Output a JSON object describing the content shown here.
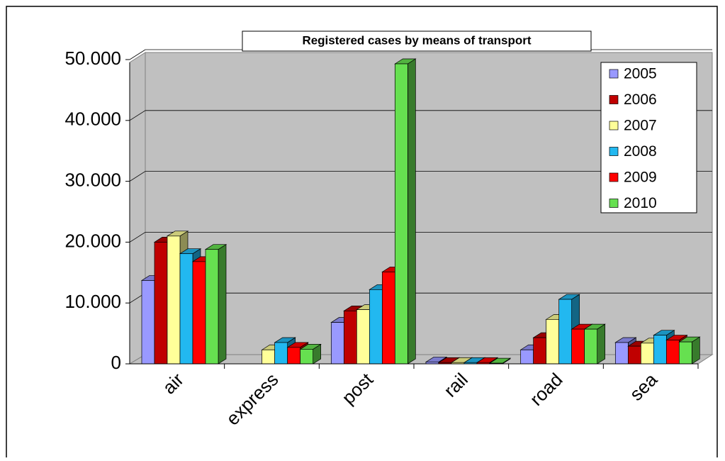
{
  "chart_data": {
    "type": "bar3d",
    "title": "Registered cases by means of transport",
    "categories": [
      "air",
      "express",
      "post",
      "rail",
      "road",
      "sea"
    ],
    "series": [
      {
        "name": "2005",
        "color": "#9999ff",
        "values": [
          13700,
          null,
          6800,
          300,
          2300,
          3500
        ]
      },
      {
        "name": "2006",
        "color": "#c00000",
        "values": [
          20000,
          null,
          8700,
          200,
          4300,
          2900
        ]
      },
      {
        "name": "2007",
        "color": "#ffff99",
        "values": [
          21000,
          2300,
          8900,
          200,
          7300,
          3400
        ]
      },
      {
        "name": "2008",
        "color": "#22b8f0",
        "values": [
          18100,
          3500,
          12200,
          200,
          10600,
          4700
        ]
      },
      {
        "name": "2009",
        "color": "#ff0000",
        "values": [
          16800,
          2700,
          15100,
          200,
          5700,
          3900
        ]
      },
      {
        "name": "2010",
        "color": "#66e050",
        "values": [
          18800,
          2400,
          49300,
          100,
          5700,
          3600
        ]
      }
    ],
    "ylim": [
      0,
      50000
    ],
    "yticks": [
      0,
      {
        "value": 10000,
        "label": "10.000"
      },
      {
        "value": 20000,
        "label": "20.000"
      },
      {
        "value": 30000,
        "label": "30.000"
      },
      {
        "value": 40000,
        "label": "40.000"
      },
      {
        "value": 50000,
        "label": "50.000"
      }
    ],
    "grid": true,
    "legend": "top-right"
  }
}
